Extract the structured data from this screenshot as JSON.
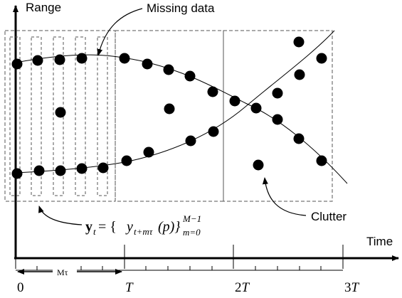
{
  "labels": {
    "range": "Range",
    "time": "Time",
    "missing_data": "Missing data",
    "clutter": "Clutter",
    "formula_main": "y",
    "formula_sub_t": "t",
    "formula_eq": " = {",
    "formula_y": "y",
    "formula_sub_idx": "t+mτ",
    "formula_p": "(p)}",
    "formula_sup": "M−1",
    "formula_sub_bottom": "m=0",
    "m_tau": "Mτ"
  },
  "ticks": [
    "0",
    "T",
    "2T",
    "3T"
  ],
  "colors": {
    "ink": "#000000",
    "dash": "#555555",
    "background": "#ffffff"
  }
}
